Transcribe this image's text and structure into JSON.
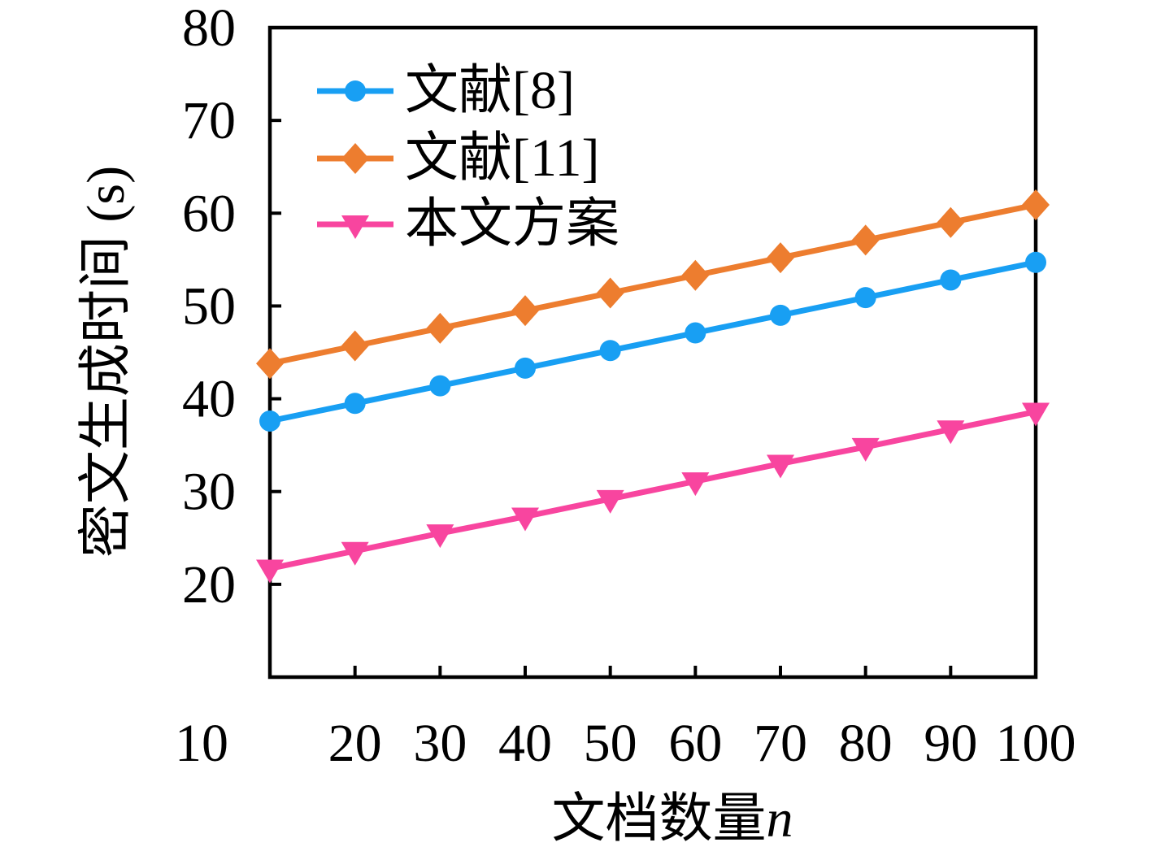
{
  "chart_data": {
    "type": "line",
    "title": "",
    "xlabel": "文档数量",
    "xlabel_symbol": "n",
    "ylabel": "密文生成时间 (s)",
    "xlim": [
      10,
      100
    ],
    "ylim": [
      10,
      80
    ],
    "x_tick_labels": [
      10,
      20,
      30,
      40,
      50,
      60,
      70,
      80,
      90,
      100
    ],
    "x_inner_ticks": [
      20,
      30,
      40,
      50,
      60,
      70,
      80,
      90
    ],
    "y_tick_labels": [
      20,
      30,
      40,
      50,
      60,
      70,
      80
    ],
    "y_inner_ticks": [
      20,
      30,
      40,
      50,
      60,
      70
    ],
    "x": [
      10,
      20,
      30,
      40,
      50,
      60,
      70,
      80,
      90,
      100
    ],
    "series": [
      {
        "name": "文献[8]",
        "marker": "circle",
        "color": "#189FF3",
        "values": [
          37.6,
          39.5,
          41.4,
          43.3,
          45.2,
          47.1,
          49.0,
          50.9,
          52.8,
          54.7
        ]
      },
      {
        "name": "文献[11]",
        "marker": "diamond",
        "color": "#ED7D2F",
        "values": [
          43.8,
          45.7,
          47.6,
          49.5,
          51.4,
          53.3,
          55.2,
          57.1,
          59.0,
          60.9
        ]
      },
      {
        "name": "本文方案",
        "marker": "triangle-down",
        "color": "#F8459F",
        "values": [
          21.7,
          23.6,
          25.5,
          27.3,
          29.2,
          31.1,
          33.0,
          34.8,
          36.7,
          38.6
        ]
      }
    ],
    "legend_position": "top-left-inside",
    "grid": false,
    "frame": true,
    "axis_color": "#000000",
    "background": "#FFFFFF"
  }
}
